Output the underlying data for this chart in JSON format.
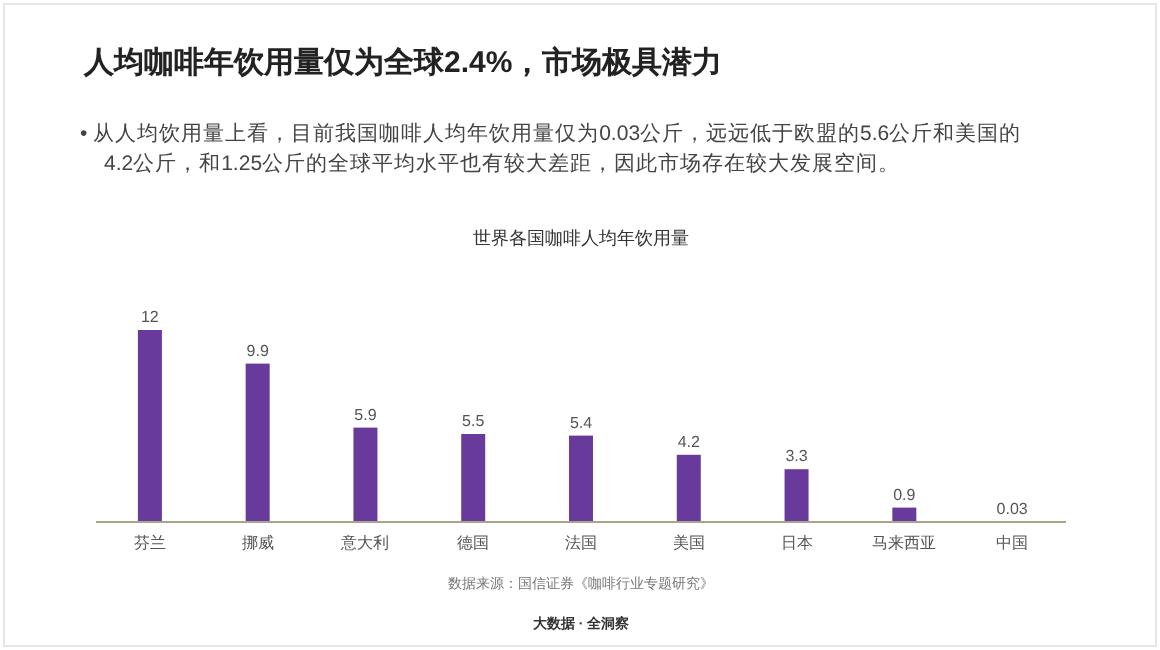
{
  "chart_data": {
    "type": "bar",
    "title": "世界各国咖啡人均年饮用量",
    "annotations": [
      "人均咖啡年饮用量仅为全球2.4%，市场极具潜力",
      "• 从人均饮用量上看，目前我国咖啡人均年饮用量仅为0.03公斤，远远低于欧盟的5.6公斤和美国的4.2公斤，和1.25公斤的全球平均水平也有较大差距，因此市场存在较大发展空间。",
      "数据来源：国信证券《咖啡行业专题研究》",
      "大数据 · 全洞察"
    ],
    "categories": [
      "芬兰",
      "挪威",
      "意大利",
      "德国",
      "法国",
      "美国",
      "日本",
      "马来西亚",
      "中国"
    ],
    "values": [
      12,
      9.9,
      5.9,
      5.5,
      5.4,
      4.2,
      3.3,
      0.9,
      0.03
    ],
    "color": "#673a9c",
    "data_labels": true
  }
}
